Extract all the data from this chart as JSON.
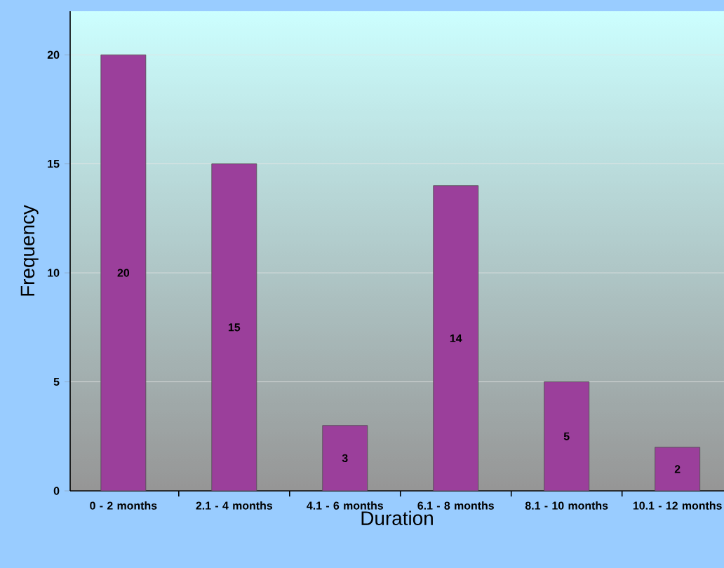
{
  "chart_data": {
    "type": "bar",
    "xlabel": "Duration",
    "ylabel": "Frequency",
    "categories": [
      "0 - 2 months",
      "2.1 - 4 months",
      "4.1 - 6 months",
      "6.1 - 8 months",
      "8.1 - 10 months",
      "10.1 - 12 months"
    ],
    "values": [
      20,
      15,
      3,
      14,
      5,
      2
    ],
    "color": "#9b3f9b",
    "ylim": [
      0,
      22
    ],
    "yticks": [
      0,
      5,
      10,
      15,
      20
    ],
    "grid": "y",
    "data_labels": true
  }
}
